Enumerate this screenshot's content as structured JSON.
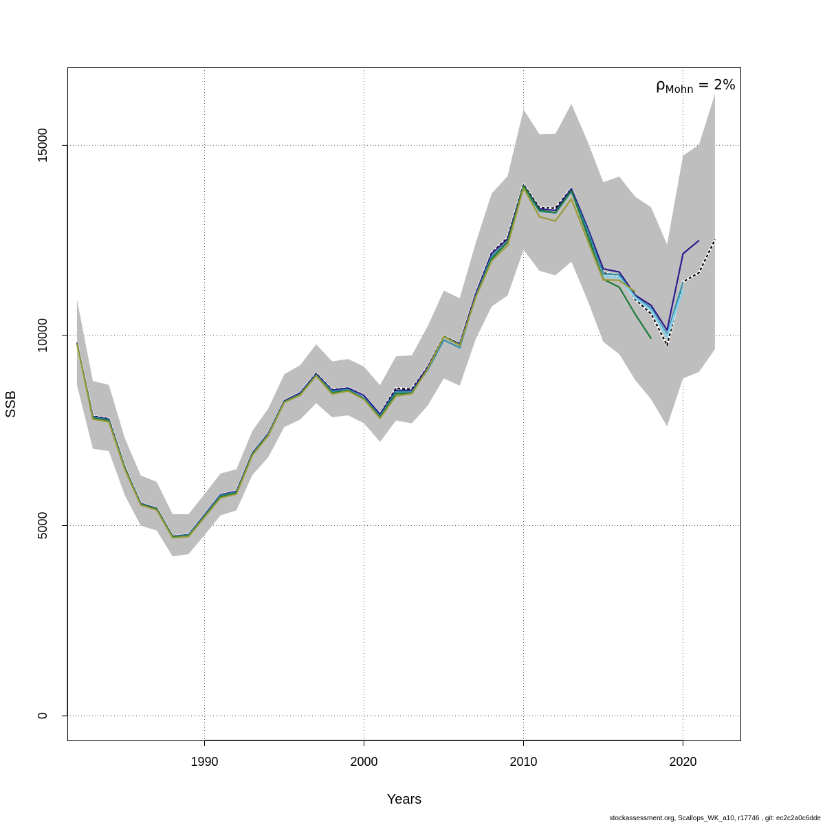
{
  "footer": "stockassessment.org, Scallops_WK_a10, r17746 , git: ec2c2a0c6dde",
  "chart_data": {
    "type": "line",
    "xlabel": "Years",
    "ylabel": "SSB",
    "xlim": [
      1981.4,
      2023.6
    ],
    "ylim": [
      -650,
      17050
    ],
    "x_ticks": [
      1990,
      2000,
      2010,
      2020
    ],
    "y_ticks": [
      0,
      5000,
      10000,
      15000
    ],
    "grid": true,
    "annotation": {
      "symbol": "ρ",
      "subscript": "Mohn",
      "text": " = 2%"
    },
    "band": {
      "color": "#bebebe",
      "x": [
        1982,
        1983,
        1984,
        1985,
        1986,
        1987,
        1988,
        1989,
        1990,
        1991,
        1992,
        1993,
        1994,
        1995,
        1996,
        1997,
        1998,
        1999,
        2000,
        2001,
        2002,
        2003,
        2004,
        2005,
        2006,
        2007,
        2008,
        2009,
        2010,
        2011,
        2012,
        2013,
        2014,
        2015,
        2016,
        2017,
        2018,
        2019,
        2020,
        2021,
        2022
      ],
      "upper": [
        10950,
        8800,
        8700,
        7300,
        6320,
        6150,
        5300,
        5300,
        5830,
        6370,
        6480,
        7490,
        8080,
        8980,
        9220,
        9770,
        9320,
        9380,
        9180,
        8690,
        9450,
        9480,
        10250,
        11180,
        10980,
        12430,
        13730,
        14190,
        15940,
        15290,
        15300,
        16090,
        15120,
        14030,
        14180,
        13650,
        13370,
        12390,
        14730,
        15010,
        16350
      ],
      "lower": [
        8700,
        7020,
        6960,
        5800,
        5000,
        4870,
        4190,
        4250,
        4750,
        5270,
        5400,
        6330,
        6800,
        7590,
        7790,
        8220,
        7850,
        7900,
        7690,
        7200,
        7760,
        7690,
        8160,
        8870,
        8680,
        9900,
        10760,
        11050,
        12250,
        11700,
        11580,
        11940,
        10940,
        9830,
        9510,
        8830,
        8320,
        7610,
        8870,
        9040,
        9640
      ]
    },
    "series": [
      {
        "name": "",
        "color": "#000000",
        "dashed": true,
        "shadow": true,
        "x": [
          1982,
          1983,
          1984,
          1985,
          1986,
          1987,
          1988,
          1989,
          1990,
          1991,
          1992,
          1993,
          1994,
          1995,
          1996,
          1997,
          1998,
          1999,
          2000,
          2001,
          2002,
          2003,
          2004,
          2005,
          2006,
          2007,
          2008,
          2009,
          2010,
          2011,
          2012,
          2013,
          2014,
          2015,
          2016,
          2017,
          2018,
          2019,
          2020,
          2021,
          2022
        ],
        "values": [
          9800,
          7880,
          7810,
          6540,
          5580,
          5450,
          4720,
          4760,
          5280,
          5810,
          5900,
          6910,
          7420,
          8280,
          8490,
          9000,
          8570,
          8620,
          8420,
          7930,
          8610,
          8590,
          9180,
          9980,
          9780,
          11100,
          12170,
          12570,
          13970,
          13360,
          13350,
          13860,
          12740,
          11640,
          11590,
          10950,
          10570,
          9740,
          11410,
          11650,
          12520
        ]
      },
      {
        "name": "",
        "color": "#2b1b8c",
        "x": [
          1982,
          1983,
          1984,
          1985,
          1986,
          1987,
          1988,
          1989,
          1990,
          1991,
          1992,
          1993,
          1994,
          1995,
          1996,
          1997,
          1998,
          1999,
          2000,
          2001,
          2002,
          2003,
          2004,
          2005,
          2006,
          2007,
          2008,
          2009,
          2010,
          2011,
          2012,
          2013,
          2014,
          2015,
          2016,
          2017,
          2018,
          2019,
          2020,
          2021
        ],
        "values": [
          9800,
          7870,
          7800,
          6530,
          5580,
          5450,
          4720,
          4760,
          5280,
          5810,
          5900,
          6910,
          7420,
          8280,
          8490,
          8990,
          8560,
          8620,
          8420,
          7930,
          8560,
          8560,
          9170,
          9970,
          9780,
          11090,
          12150,
          12540,
          13950,
          13330,
          13290,
          13860,
          12850,
          11750,
          11670,
          11060,
          10790,
          10140,
          12150,
          12500
        ]
      },
      {
        "name": "",
        "color": "#2f8fa8",
        "x": [
          1982,
          1983,
          1984,
          1985,
          1986,
          1987,
          1988,
          1989,
          1990,
          1991,
          1992,
          1993,
          1994,
          1995,
          1996,
          1997,
          1998,
          1999,
          2000,
          2001,
          2002,
          2003,
          2004,
          2005,
          2006,
          2007,
          2008,
          2009,
          2010,
          2011,
          2012,
          2013,
          2014,
          2015,
          2016,
          2017,
          2018,
          2019,
          2020
        ],
        "values": [
          9790,
          7850,
          7780,
          6520,
          5570,
          5440,
          4710,
          4750,
          5260,
          5790,
          5880,
          6890,
          7400,
          8260,
          8460,
          8960,
          8530,
          8580,
          8360,
          7880,
          8520,
          8520,
          9100,
          9880,
          9680,
          11030,
          12080,
          12470,
          13880,
          13270,
          13220,
          13790,
          12780,
          11620,
          11600,
          11020,
          10720,
          10020,
          11400
        ]
      },
      {
        "name": "",
        "color": "#8ecfe8",
        "width": 3.2,
        "x": [
          2015,
          2016,
          2017,
          2018,
          2019,
          2020
        ],
        "values": [
          11560,
          11520,
          10990,
          10660,
          9960,
          11200
        ]
      },
      {
        "name": "",
        "color": "#1b7a3a",
        "x": [
          1982,
          1983,
          1984,
          1985,
          1986,
          1987,
          1988,
          1989,
          1990,
          1991,
          1992,
          1993,
          1994,
          1995,
          1996,
          1997,
          1998,
          1999,
          2000,
          2001,
          2002,
          2003,
          2004,
          2005,
          2006,
          2007,
          2008,
          2009,
          2010,
          2011,
          2012,
          2013,
          2014,
          2015,
          2016,
          2017,
          2018
        ],
        "values": [
          9790,
          7830,
          7760,
          6510,
          5560,
          5440,
          4700,
          4730,
          5240,
          5760,
          5860,
          6870,
          7390,
          8250,
          8450,
          8950,
          8490,
          8560,
          8330,
          7850,
          8470,
          8480,
          9130,
          9980,
          9750,
          11010,
          12010,
          12460,
          13940,
          13290,
          13230,
          13810,
          12650,
          11480,
          11270,
          10560,
          9920
        ]
      },
      {
        "name": "",
        "color": "#9a9a37",
        "x": [
          1982,
          1983,
          1984,
          1985,
          1986,
          1987,
          1988,
          1989,
          1990,
          1991,
          1992,
          1993,
          1994,
          1995,
          1996,
          1997,
          1998,
          1999,
          2000,
          2001,
          2002,
          2003,
          2004,
          2005,
          2006,
          2007,
          2008,
          2009,
          2010,
          2011,
          2012,
          2013,
          2014,
          2015,
          2016,
          2017
        ],
        "values": [
          9780,
          7800,
          7730,
          6480,
          5540,
          5410,
          4680,
          4710,
          5220,
          5730,
          5830,
          6850,
          7370,
          8240,
          8430,
          8940,
          8460,
          8540,
          8320,
          7820,
          8410,
          8470,
          9130,
          9970,
          9740,
          11000,
          11960,
          12370,
          13880,
          13120,
          13010,
          13590,
          12520,
          11460,
          11450,
          11150
        ]
      }
    ]
  }
}
